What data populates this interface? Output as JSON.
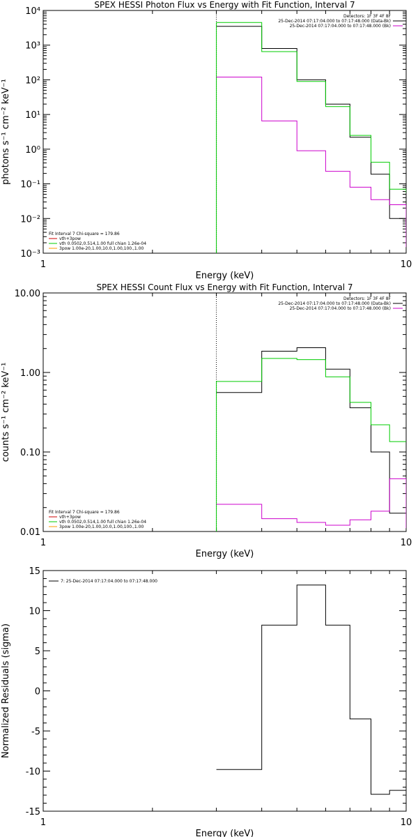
{
  "chart_data": [
    {
      "type": "line",
      "title": "SPEX HESSI Photon Flux vs Energy with Fit Function, Interval 7",
      "xlabel": "Energy (keV)",
      "ylabel": "photons s⁻¹ cm⁻² keV⁻¹",
      "x_scale": "log",
      "y_scale": "log",
      "xlim": [
        1,
        10
      ],
      "ylim": [
        0.001,
        10000
      ],
      "x_ticks": [
        1,
        10
      ],
      "x_tick_labels": [
        "1",
        "10"
      ],
      "y_ticks": [
        0.001,
        0.01,
        0.1,
        1,
        10,
        100,
        1000,
        10000
      ],
      "y_tick_labels": [
        "10⁻³",
        "10⁻²",
        "10⁻¹",
        "10⁰",
        "10¹",
        "10²",
        "10³",
        "10⁴"
      ],
      "vertical_line": {
        "x": 3,
        "style": "dotted"
      },
      "legend_top_right": [
        {
          "text": "Detectors: 1F 3F 4F 8F",
          "color": "#000000",
          "line": false
        },
        {
          "text": "25-Dec-2014 07:17:04.000 to 07:17:48.000 (Data-Bk)",
          "color": "#000000",
          "line": true
        },
        {
          "text": "25-Dec-2014 07:17:04.000 to 07:17:48.000 (Bk)",
          "color": "#cc00cc",
          "line": true
        }
      ],
      "legend_bottom_left": [
        {
          "text": "Fit Interval  7    Chi-square = 179.86",
          "color": "#000000",
          "line": false
        },
        {
          "text": "vth+3pow",
          "color": "#cc0000",
          "line": true
        },
        {
          "text": "vth 0.0502,0.514,1.00   full chian 1.26e-04",
          "color": "#00cc00",
          "line": true
        },
        {
          "text": "3pow 1.00e-20,1.00,10.0,1.00,100.,1.00",
          "color": "#ff9900",
          "line": true
        }
      ],
      "bin_edges": [
        3,
        4,
        5,
        6,
        7,
        8,
        9,
        10
      ],
      "series": [
        {
          "color": "#000000",
          "values": [
            3500,
            800,
            100,
            20,
            2.2,
            0.19,
            0.01
          ]
        },
        {
          "color": "#00cc00",
          "values": [
            4500,
            650,
            90,
            17,
            2.5,
            0.42,
            0.07
          ]
        },
        {
          "color": "#cc00cc",
          "values": [
            120,
            6.5,
            0.9,
            0.23,
            0.08,
            0.035,
            0.025
          ]
        }
      ],
      "tail_drop": {
        "#00cc00": 0.055,
        "#cc00cc": 0.0015
      },
      "lead_in": {
        "#00cc00": 0.001
      }
    },
    {
      "type": "line",
      "title": "SPEX HESSI Count Flux vs Energy with Fit Function, Interval 7",
      "xlabel": "Energy (keV)",
      "ylabel": "counts s⁻¹ cm⁻² keV⁻¹",
      "x_scale": "log",
      "y_scale": "log",
      "xlim": [
        1,
        10
      ],
      "ylim": [
        0.01,
        10
      ],
      "x_ticks": [
        1,
        10
      ],
      "x_tick_labels": [
        "1",
        "10"
      ],
      "y_ticks": [
        0.01,
        0.1,
        1,
        10
      ],
      "y_tick_labels": [
        "0.01",
        "0.10",
        "1.00",
        "10.00"
      ],
      "vertical_line": {
        "x": 3,
        "style": "dotted"
      },
      "legend_top_right": [
        {
          "text": "Detectors: 1F 3F 4F 8F",
          "color": "#000000",
          "line": false
        },
        {
          "text": "25-Dec-2014 07:17:04.000 to 07:17:48.000 (Data-Bk)",
          "color": "#000000",
          "line": true
        },
        {
          "text": "25-Dec-2014 07:17:04.000 to 07:17:48.000 (Bk)",
          "color": "#cc00cc",
          "line": true
        }
      ],
      "legend_bottom_left": [
        {
          "text": "Fit Interval  7    Chi-square = 179.86",
          "color": "#000000",
          "line": false
        },
        {
          "text": "vth+3pow",
          "color": "#cc0000",
          "line": true
        },
        {
          "text": "vth 0.0502,0.514,1.00   full chian 1.26e-04",
          "color": "#00cc00",
          "line": true
        },
        {
          "text": "3pow 1.00e-20,1.00,10.0,1.00,100.,1.00",
          "color": "#ff9900",
          "line": true
        }
      ],
      "bin_edges": [
        3,
        4,
        5,
        6,
        7,
        8,
        9,
        10
      ],
      "series": [
        {
          "color": "#000000",
          "values": [
            0.56,
            1.85,
            2.05,
            1.1,
            0.36,
            0.1,
            0.017
          ]
        },
        {
          "color": "#00cc00",
          "values": [
            0.77,
            1.5,
            1.45,
            0.88,
            0.42,
            0.22,
            0.135
          ]
        },
        {
          "color": "#cc00cc",
          "values": [
            0.022,
            0.0145,
            0.013,
            0.012,
            0.014,
            0.018,
            0.046
          ]
        }
      ],
      "tail_drop": {
        "#cc00cc": 0.011
      },
      "lead_in": {
        "#00cc00": 0.01
      }
    },
    {
      "type": "line",
      "title": "",
      "xlabel": "Energy (keV)",
      "ylabel": "Normalized Residuals (sigma)",
      "x_scale": "log",
      "y_scale": "linear",
      "xlim": [
        1,
        10
      ],
      "ylim": [
        -15,
        15
      ],
      "x_ticks": [
        1,
        10
      ],
      "x_tick_labels": [
        "1",
        "10"
      ],
      "y_ticks": [
        -15,
        -10,
        -5,
        0,
        5,
        10,
        15
      ],
      "y_tick_labels": [
        "-15",
        "-10",
        "-5",
        "0",
        "5",
        "10",
        "15"
      ],
      "legend_top_left": [
        {
          "text": "7: 25-Dec-2014 07:17:04.000 to 07:17:48.000",
          "color": "#000000",
          "line": true
        }
      ],
      "bin_edges": [
        3,
        4,
        5,
        6,
        7,
        8,
        9,
        10
      ],
      "series": [
        {
          "color": "#000000",
          "values": [
            -9.8,
            8.2,
            13.2,
            8.2,
            -3.5,
            -12.9,
            -12.4
          ]
        }
      ]
    }
  ]
}
